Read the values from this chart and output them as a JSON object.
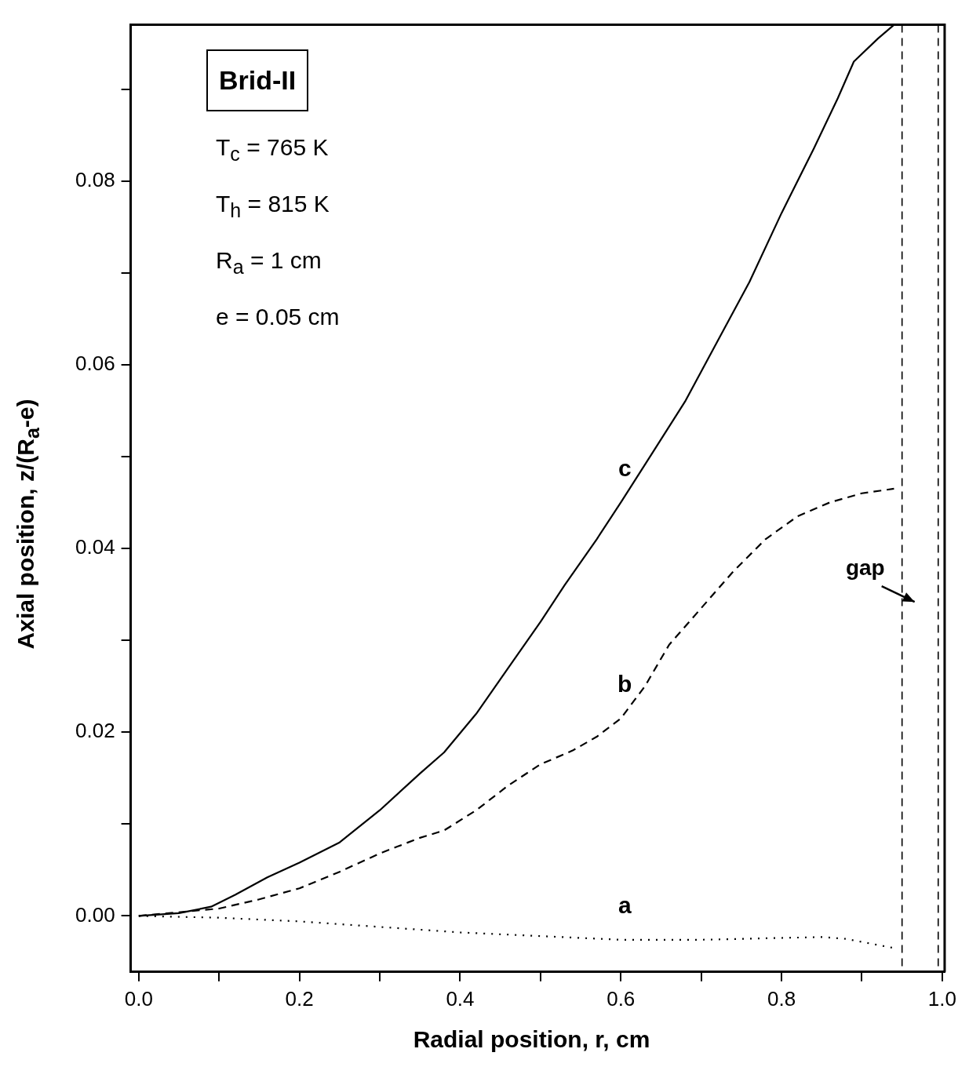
{
  "chart_data": {
    "type": "line",
    "xlabel": "Radial position, r, cm",
    "ylabel": "Axial position, z/(R$_{a}$-e)",
    "xlim": [
      -0.01,
      1.003
    ],
    "ylim": [
      -0.0061,
      0.097
    ],
    "xticks": [
      {
        "value": 0,
        "label": "0.0"
      },
      {
        "value": 0.1,
        "label": null
      },
      {
        "value": 0.2,
        "label": "0.2"
      },
      {
        "value": 0.3,
        "label": null
      },
      {
        "value": 0.4,
        "label": "0.4"
      },
      {
        "value": 0.5,
        "label": null
      },
      {
        "value": 0.6,
        "label": "0.6"
      },
      {
        "value": 0.7,
        "label": null
      },
      {
        "value": 0.8,
        "label": "0.8"
      },
      {
        "value": 0.9,
        "label": null
      },
      {
        "value": 1,
        "label": "1.0"
      }
    ],
    "yticks": [
      {
        "value": 0,
        "label": "0.00"
      },
      {
        "value": 0.01,
        "label": null
      },
      {
        "value": 0.02,
        "label": "0.02"
      },
      {
        "value": 0.03,
        "label": null
      },
      {
        "value": 0.04,
        "label": "0.04"
      },
      {
        "value": 0.05,
        "label": null
      },
      {
        "value": 0.06,
        "label": "0.06"
      },
      {
        "value": 0.07,
        "label": null
      },
      {
        "value": 0.08,
        "label": "0.08"
      },
      {
        "value": 0.09,
        "label": null
      }
    ],
    "grid": false,
    "legend": false,
    "marker": "none",
    "series": [
      {
        "name": "c",
        "color": "#000000",
        "line_style": "solid",
        "x": [
          0,
          0.05,
          0.09,
          0.12,
          0.16,
          0.2,
          0.25,
          0.3,
          0.35,
          0.38,
          0.42,
          0.46,
          0.5,
          0.53,
          0.57,
          0.6,
          0.64,
          0.68,
          0.72,
          0.76,
          0.8,
          0.84,
          0.87,
          0.89,
          0.92,
          0.94
        ],
        "values": [
          0,
          0.0003,
          0.001,
          0.0023,
          0.0042,
          0.0058,
          0.008,
          0.0115,
          0.0155,
          0.0178,
          0.022,
          0.027,
          0.032,
          0.036,
          0.041,
          0.045,
          0.0505,
          0.056,
          0.0625,
          0.069,
          0.0765,
          0.0835,
          0.089,
          0.093,
          0.0955,
          0.097
        ]
      },
      {
        "name": "b",
        "color": "#000000",
        "line_style": "dashed",
        "x": [
          0,
          0.1,
          0.15,
          0.2,
          0.25,
          0.3,
          0.35,
          0.38,
          0.42,
          0.46,
          0.5,
          0.54,
          0.57,
          0.6,
          0.63,
          0.66,
          0.7,
          0.74,
          0.78,
          0.82,
          0.86,
          0.9,
          0.94
        ],
        "values": [
          0,
          0.0008,
          0.0018,
          0.003,
          0.0048,
          0.0068,
          0.0085,
          0.0093,
          0.0115,
          0.0142,
          0.0165,
          0.018,
          0.0195,
          0.0215,
          0.025,
          0.0295,
          0.0335,
          0.0375,
          0.041,
          0.0435,
          0.045,
          0.046,
          0.0465
        ]
      },
      {
        "name": "a",
        "color": "#000000",
        "line_style": "dotted",
        "x": [
          0,
          0.1,
          0.2,
          0.3,
          0.4,
          0.5,
          0.6,
          0.7,
          0.8,
          0.85,
          0.88,
          0.91,
          0.94
        ],
        "values": [
          0,
          -0.0002,
          -0.0006,
          -0.0012,
          -0.0018,
          -0.0022,
          -0.0026,
          -0.0026,
          -0.0024,
          -0.0023,
          -0.0025,
          -0.003,
          -0.0035
        ]
      }
    ],
    "ref_lines": [
      {
        "axis": "x",
        "value": 0.95,
        "line_style": "dashed",
        "color": "#000000",
        "label": "gap"
      },
      {
        "axis": "x",
        "value": 0.995,
        "line_style": "dashed",
        "color": "#000000"
      }
    ],
    "annotations": [
      "Brid-II",
      "T$_{c}$ = 765 K",
      "T$_{h}$ = 815 K",
      "R$_{a}$ = 1 cm",
      "e = 0.05 cm"
    ]
  }
}
